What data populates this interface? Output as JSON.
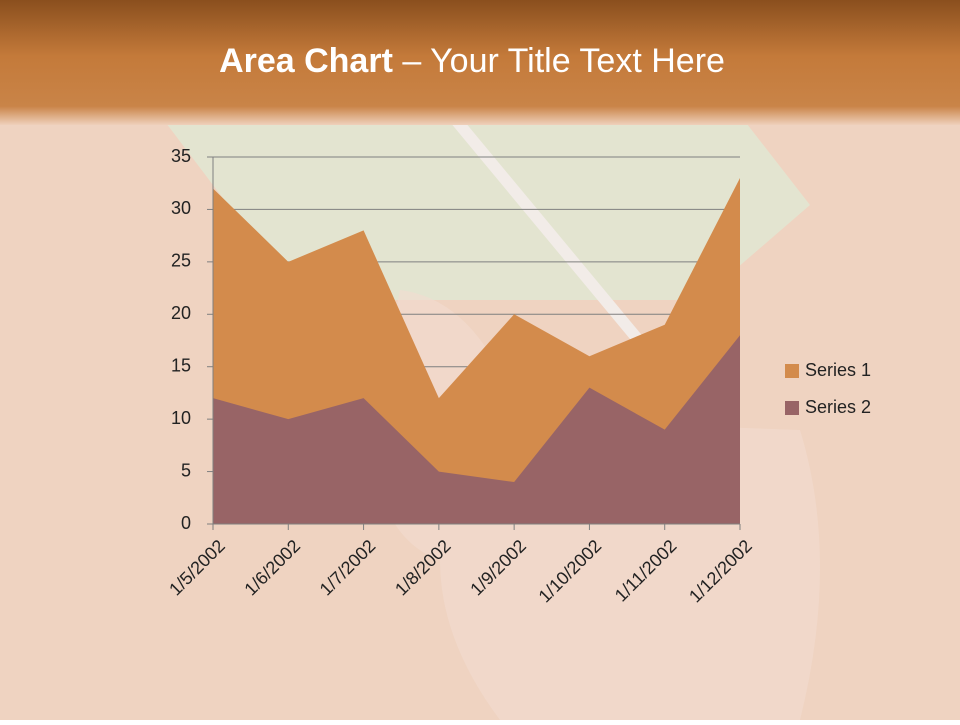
{
  "chart_data": {
    "type": "area",
    "title": [
      "Area Chart",
      "– Your Title Text Here"
    ],
    "categories": [
      "1/5/2002",
      "1/6/2002",
      "1/7/2002",
      "1/8/2002",
      "1/9/2002",
      "1/10/2002",
      "1/11/2002",
      "1/12/2002"
    ],
    "series": [
      {
        "name": "Series 1",
        "color": "#d38b4c",
        "values": [
          32,
          25,
          28,
          12,
          20,
          16,
          19,
          33
        ]
      },
      {
        "name": "Series 2",
        "color": "#986466",
        "values": [
          12,
          10,
          12,
          5,
          4,
          13,
          9,
          18
        ]
      }
    ],
    "ylim": [
      0,
      35
    ],
    "yticks": [
      0,
      5,
      10,
      15,
      20,
      25,
      30,
      35
    ],
    "grid": true,
    "legend": "right"
  }
}
